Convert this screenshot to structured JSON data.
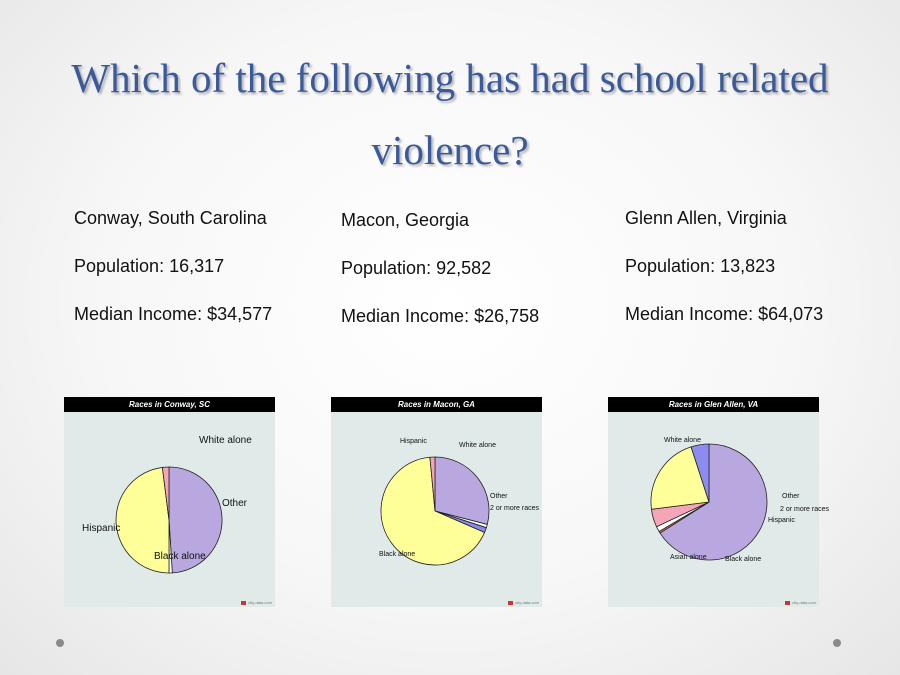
{
  "slide": {
    "title": "Which of the following has had school related violence?"
  },
  "cities": [
    {
      "name": "Conway, South Carolina",
      "population": "Population: 16,317",
      "income": "Median Income: $34,577"
    },
    {
      "name": "Macon, Georgia",
      "population": "Population: 92,582",
      "income": "Median Income: $26,758"
    },
    {
      "name": "Glenn Allen, Virginia",
      "population": "Population: 13,823",
      "income": "Median Income: $64,073"
    }
  ],
  "credit": "city-data.com",
  "chart_data": [
    {
      "type": "pie",
      "title": "Races in Conway, SC",
      "categories": [
        "White alone",
        "Other",
        "Black alone",
        "Hispanic"
      ],
      "values": [
        49,
        1,
        48,
        2
      ],
      "colors": [
        "#b9a7df",
        "#ffffff",
        "#ffff99",
        "#f4a6b8"
      ]
    },
    {
      "type": "pie",
      "title": "Races in Macon, GA",
      "categories": [
        "White alone",
        "Other",
        "2 or more races",
        "Black alone",
        "Hispanic"
      ],
      "values": [
        29,
        1,
        1.5,
        67,
        1.5
      ],
      "colors": [
        "#b9a7df",
        "#ffffff",
        "#8888ee",
        "#ffff99",
        "#f4a6b8"
      ]
    },
    {
      "type": "pie",
      "title": "Races in Glen Allen, VA",
      "categories": [
        "White alone",
        "Other",
        "2 or more races",
        "Hispanic",
        "Black alone",
        "Asian alone"
      ],
      "values": [
        66,
        0.5,
        1.5,
        5,
        22,
        5
      ],
      "colors": [
        "#b9a7df",
        "#ff7f50",
        "#ffffff",
        "#f4a6b8",
        "#ffff99",
        "#8c8cf0"
      ]
    }
  ]
}
